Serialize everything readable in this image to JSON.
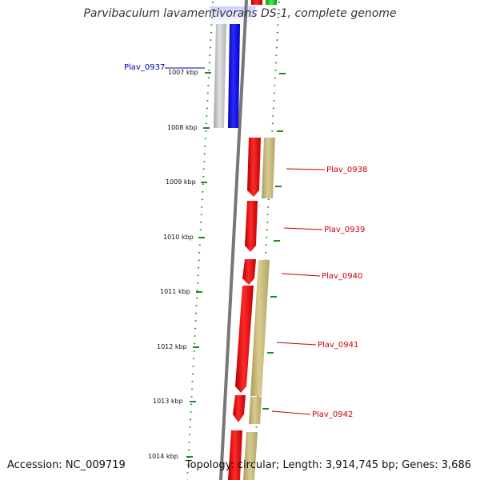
{
  "title": "Parvibaculum lavamentivorans DS-1, complete genome",
  "footer": {
    "accession": "Accession: NC_009719",
    "topology": "Topology: circular; Length: 3,914,745 bp; Genes: 3,686"
  },
  "scale_unit": "kbp",
  "colors": {
    "forward_cds": "#ee0000",
    "reverse_feature": "#c8b878",
    "highlight_forward": "#1010ee",
    "highlight_reverse": "#c0c0c0",
    "backbone": "#777777",
    "ticks": "#228822",
    "top_green": "#22cc22",
    "label_red": "#cc0000",
    "label_blue": "#0000aa"
  },
  "scale_ticks": [
    "1007 kbp",
    "1008 kbp",
    "1009 kbp",
    "1010 kbp",
    "1011 kbp",
    "1012 kbp",
    "1013 kbp",
    "1014 kbp"
  ],
  "gene_labels": [
    {
      "text": "Plav_0937",
      "color": "blue"
    },
    {
      "text": "Plav_0938",
      "color": "red"
    },
    {
      "text": "Plav_0939",
      "color": "red"
    },
    {
      "text": "Plav_0940",
      "color": "red"
    },
    {
      "text": "Plav_0941",
      "color": "red"
    },
    {
      "text": "Plav_0942",
      "color": "red"
    }
  ]
}
